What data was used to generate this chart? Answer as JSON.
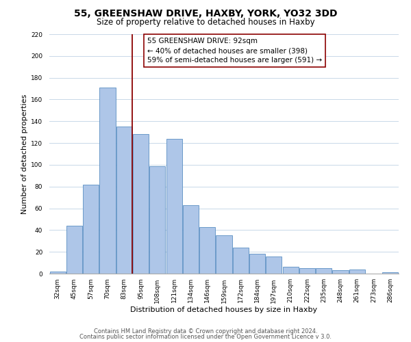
{
  "title": "55, GREENSHAW DRIVE, HAXBY, YORK, YO32 3DD",
  "subtitle": "Size of property relative to detached houses in Haxby",
  "xlabel": "Distribution of detached houses by size in Haxby",
  "ylabel": "Number of detached properties",
  "bar_labels": [
    "32sqm",
    "45sqm",
    "57sqm",
    "70sqm",
    "83sqm",
    "95sqm",
    "108sqm",
    "121sqm",
    "134sqm",
    "146sqm",
    "159sqm",
    "172sqm",
    "184sqm",
    "197sqm",
    "210sqm",
    "222sqm",
    "235sqm",
    "248sqm",
    "261sqm",
    "273sqm",
    "286sqm"
  ],
  "bar_values": [
    2,
    44,
    82,
    171,
    135,
    128,
    99,
    124,
    63,
    43,
    35,
    24,
    18,
    16,
    6,
    5,
    5,
    3,
    4,
    0,
    1
  ],
  "bar_color": "#aec6e8",
  "bar_edgecolor": "#5a8fc2",
  "vline_x_index": 4.5,
  "annotation_box_text": "55 GREENSHAW DRIVE: 92sqm\n← 40% of detached houses are smaller (398)\n59% of semi-detached houses are larger (591) →",
  "vline_color": "#8b0000",
  "ylim": [
    0,
    220
  ],
  "yticks": [
    0,
    20,
    40,
    60,
    80,
    100,
    120,
    140,
    160,
    180,
    200,
    220
  ],
  "footer1": "Contains HM Land Registry data © Crown copyright and database right 2024.",
  "footer2": "Contains public sector information licensed under the Open Government Licence v 3.0.",
  "background_color": "#ffffff",
  "grid_color": "#c8d8e8",
  "title_fontsize": 10,
  "subtitle_fontsize": 8.5,
  "axis_label_fontsize": 8,
  "tick_fontsize": 6.5,
  "annotation_fontsize": 7.5,
  "footer_fontsize": 6
}
